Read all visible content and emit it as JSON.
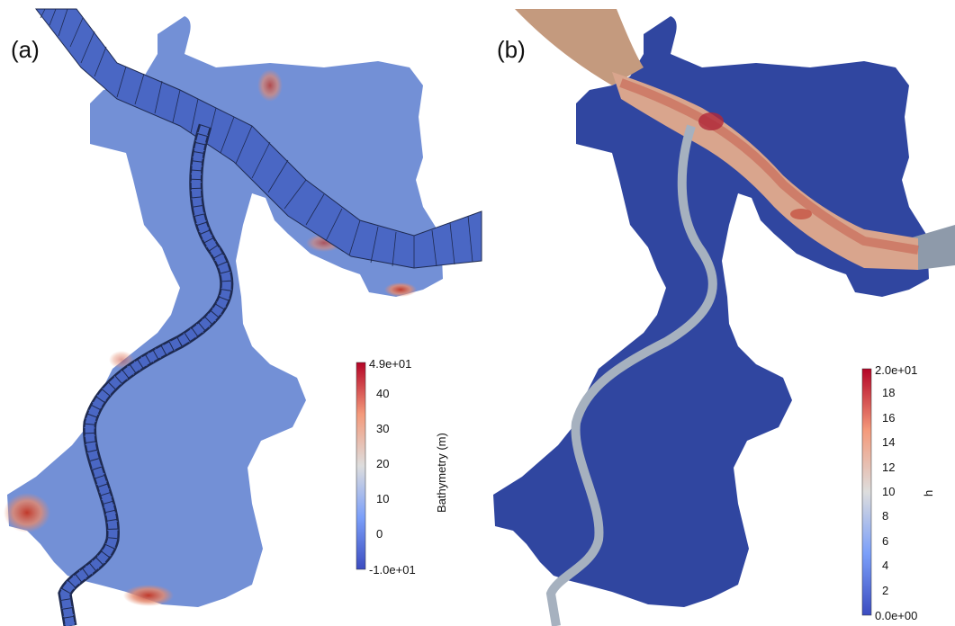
{
  "panels": [
    {
      "label": "(a)",
      "colorbar": {
        "title": "Bathymetry (m)",
        "max_label": "4.9e+01",
        "min_label": "-1.0e+01",
        "ticks": [
          "40",
          "30",
          "20",
          "10",
          "0"
        ],
        "tick_values": [
          40,
          30,
          20,
          10,
          0
        ],
        "min": -10,
        "max": 49
      }
    },
    {
      "label": "(b)",
      "colorbar": {
        "title": "h",
        "max_label": "2.0e+01",
        "min_label": "0.0e+00",
        "ticks": [
          "18",
          "16",
          "14",
          "12",
          "10",
          "8",
          "6",
          "4",
          "2"
        ],
        "tick_values": [
          18,
          16,
          14,
          12,
          10,
          8,
          6,
          4,
          2
        ],
        "min": 0,
        "max": 20
      }
    }
  ],
  "colors": {
    "cool": "#3b4cc0",
    "mid": "#dddddd",
    "warm": "#b40426",
    "domain_a": "#7390d6",
    "domain_b": "#3046a0",
    "channel_b": "#a6b1bf",
    "river_b_inlet": "#c49a7e",
    "river_b_outlet": "#8e9aaa"
  }
}
